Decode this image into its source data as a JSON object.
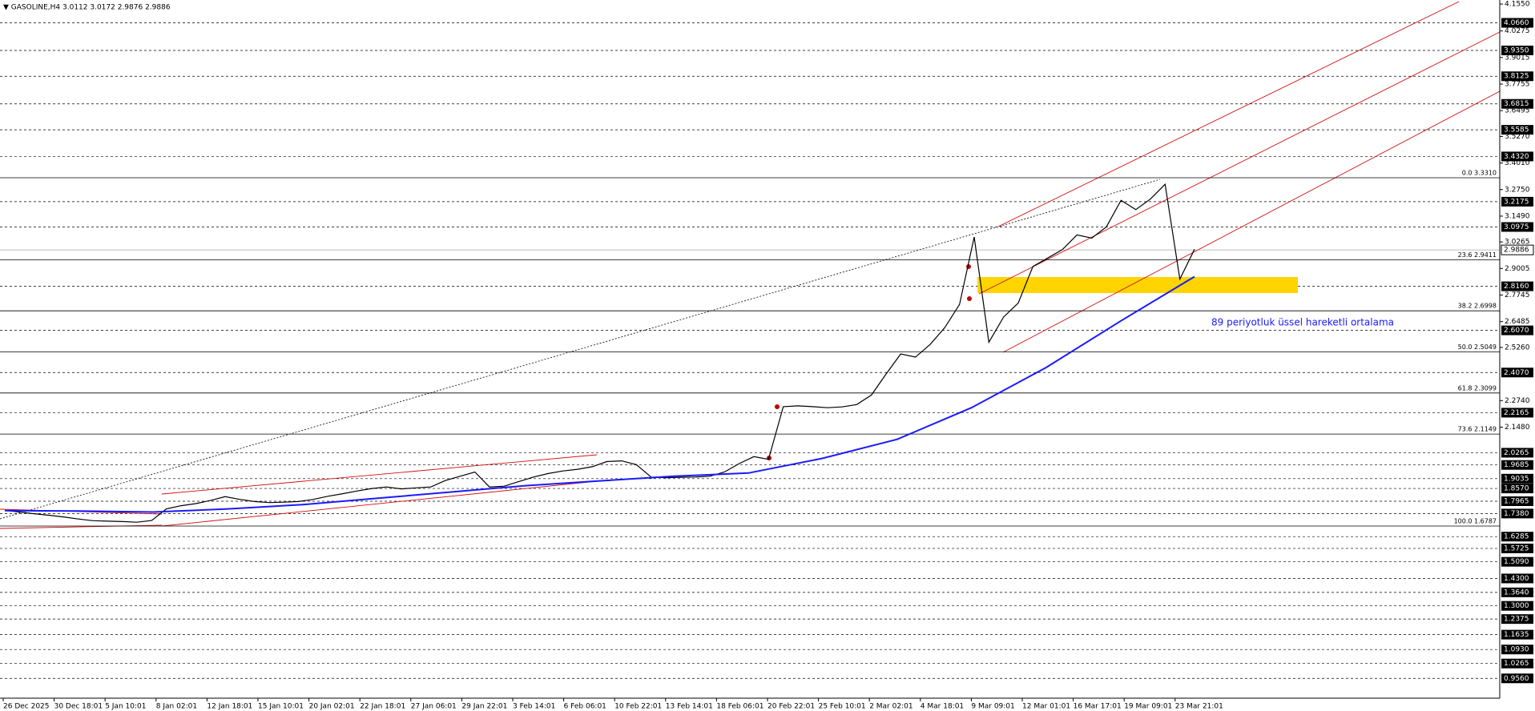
{
  "header": {
    "title": "▼ GASOLINE,H4  3.0112 3.0172 2.9876 2.9886"
  },
  "chart_data": {
    "type": "line",
    "ylim": [
      0.862,
      4.1743
    ],
    "yticks": [
      {
        "value": 4.155,
        "label": "4.1550"
      },
      {
        "value": 4.0275,
        "label": "4.0275"
      },
      {
        "value": 3.9015,
        "label": "3.9015"
      },
      {
        "value": 3.7755,
        "label": "3.7755"
      },
      {
        "value": 3.6495,
        "label": "3.6495"
      },
      {
        "value": 3.527,
        "label": "3.5270"
      },
      {
        "value": 3.401,
        "label": "3.4010"
      },
      {
        "value": 3.275,
        "label": "3.2750"
      },
      {
        "value": 3.149,
        "label": "3.1490"
      },
      {
        "value": 3.0265,
        "label": "3.0265"
      },
      {
        "value": 2.9005,
        "label": "2.9005"
      },
      {
        "value": 2.7745,
        "label": "2.7745"
      },
      {
        "value": 2.6485,
        "label": "2.6485"
      },
      {
        "value": 2.526,
        "label": "2.5260"
      },
      {
        "value": 2.274,
        "label": "2.2740"
      },
      {
        "value": 2.148,
        "label": "2.1480"
      }
    ],
    "hlines": [
      {
        "value": 4.066,
        "label": "4.0660"
      },
      {
        "value": 3.935,
        "label": "3.9350"
      },
      {
        "value": 3.8125,
        "label": "3.8125"
      },
      {
        "value": 3.6815,
        "label": "3.6815"
      },
      {
        "value": 3.5585,
        "label": "3.5585"
      },
      {
        "value": 3.432,
        "label": "3.4320"
      },
      {
        "value": 3.2175,
        "label": "3.2175"
      },
      {
        "value": 3.0975,
        "label": "3.0975"
      },
      {
        "value": 2.816,
        "label": "2.8160"
      },
      {
        "value": 2.607,
        "label": "2.6070"
      },
      {
        "value": 2.407,
        "label": "2.4070"
      },
      {
        "value": 2.2165,
        "label": "2.2165"
      },
      {
        "value": 2.0265,
        "label": "2.0265"
      },
      {
        "value": 1.9685,
        "label": "1.9685"
      },
      {
        "value": 1.9035,
        "label": "1.9035"
      },
      {
        "value": 1.857,
        "label": "1.8570"
      },
      {
        "value": 1.7965,
        "label": "1.7965"
      },
      {
        "value": 1.738,
        "label": "1.7380"
      },
      {
        "value": 1.6285,
        "label": "1.6285"
      },
      {
        "value": 1.5725,
        "label": "1.5725"
      },
      {
        "value": 1.509,
        "label": "1.5090"
      },
      {
        "value": 1.43,
        "label": "1.4300"
      },
      {
        "value": 1.364,
        "label": "1.3640"
      },
      {
        "value": 1.3,
        "label": "1.3000"
      },
      {
        "value": 1.2375,
        "label": "1.2375"
      },
      {
        "value": 1.1635,
        "label": "1.1635"
      },
      {
        "value": 1.093,
        "label": "1.0930"
      },
      {
        "value": 1.0265,
        "label": "1.0265"
      },
      {
        "value": 0.956,
        "label": "0.9560"
      }
    ],
    "bid": {
      "value": 2.9886,
      "label": "2.9886"
    },
    "fib_levels": [
      {
        "value": 3.331,
        "label": "0.0 3.3310"
      },
      {
        "value": 2.9411,
        "label": "23.6 2.9411"
      },
      {
        "value": 2.6998,
        "label": "38.2 2.6998"
      },
      {
        "value": 2.5049,
        "label": "50.0 2.5049"
      },
      {
        "value": 2.3099,
        "label": "61.8 2.3099"
      },
      {
        "value": 2.1149,
        "label": "73.6 2.1149"
      },
      {
        "value": 1.6787,
        "label": "100.0 1.6787"
      }
    ],
    "x_labels": [
      "26 Dec 2025",
      "30 Dec 18:01",
      "5 Jan 10:01",
      "8 Jan 02:01",
      "12 Jan 18:01",
      "15 Jan 10:01",
      "20 Jan 02:01",
      "22 Jan 18:01",
      "27 Jan 06:01",
      "29 Jan 22:01",
      "3 Feb 14:01",
      "6 Feb 06:01",
      "10 Feb 22:01",
      "13 Feb 14:01",
      "18 Feb 06:01",
      "20 Feb 22:01",
      "25 Feb 10:01",
      "2 Mar 02:01",
      "4 Mar 18:01",
      "9 Mar 09:01",
      "12 Mar 01:01",
      "16 Mar 17:01",
      "19 Mar 09:01",
      "23 Mar 21:01"
    ],
    "series": [
      {
        "color": "#000000",
        "values": [
          1.753,
          1.745,
          1.737,
          1.73,
          1.722,
          1.712,
          1.704,
          1.702,
          1.7,
          1.697,
          1.705,
          1.76,
          1.775,
          1.785,
          1.8,
          1.818,
          1.805,
          1.795,
          1.79,
          1.792,
          1.795,
          1.805,
          1.82,
          1.832,
          1.845,
          1.857,
          1.864,
          1.855,
          1.86,
          1.864,
          1.895,
          1.915,
          1.935,
          1.864,
          1.868,
          1.89,
          1.911,
          1.928,
          1.94,
          1.948,
          1.96,
          1.985,
          1.988,
          1.97,
          1.911,
          1.908,
          1.91,
          1.911,
          1.915,
          1.935,
          1.975,
          2.008,
          1.995,
          2.245,
          2.249,
          2.245,
          2.24,
          2.244,
          2.255,
          2.3,
          2.4,
          2.495,
          2.48,
          2.54,
          2.62,
          2.73,
          3.05,
          2.551,
          2.67,
          2.737,
          2.91,
          2.95,
          2.99,
          3.06,
          3.045,
          3.098,
          3.224,
          3.18,
          3.23,
          3.3,
          2.85,
          2.992
        ]
      },
      {
        "color": "#1a1aff",
        "values": [
          1.752,
          1.75,
          1.745,
          1.76,
          1.78,
          1.81,
          1.84,
          1.87,
          1.893,
          1.915,
          1.93,
          2.0,
          2.09,
          2.24,
          2.43,
          2.65,
          2.862
        ]
      }
    ],
    "annotation": "89 periyotluk üssel hareketli ortalama"
  }
}
